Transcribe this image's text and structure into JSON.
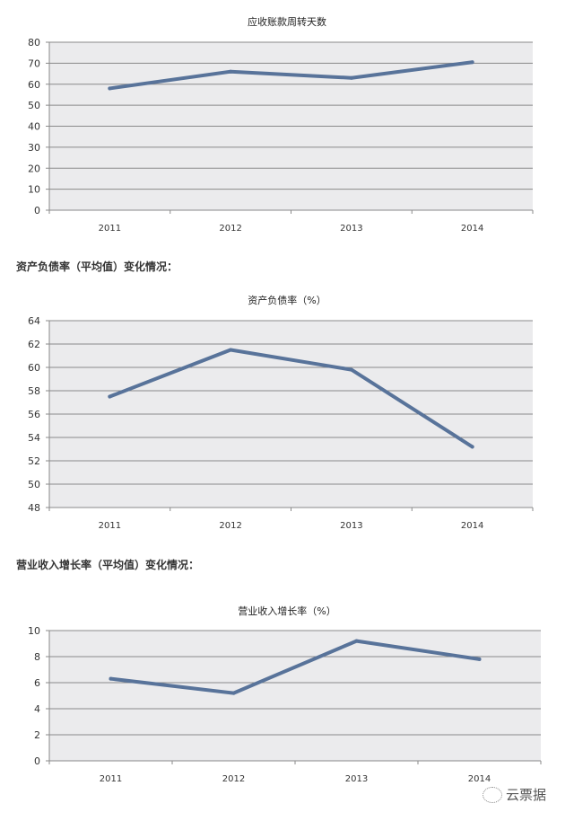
{
  "headings": [
    "资产负债率（平均值）变化情况：",
    "营业收入增长率（平均值）变化情况："
  ],
  "watermark": {
    "text": "云票据",
    "icon": "wechat-icon"
  },
  "chart_data": [
    {
      "type": "line",
      "title": "应收账款周转天数",
      "categories": [
        "2011",
        "2012",
        "2013",
        "2014"
      ],
      "values": [
        58,
        66,
        63,
        70.5
      ],
      "ylim": [
        0,
        80
      ],
      "yticks": [
        0,
        10,
        20,
        30,
        40,
        50,
        60,
        70,
        80
      ],
      "grid": true,
      "line_color": "#58739a",
      "plot_bg": "#ebebed"
    },
    {
      "type": "line",
      "title": "资产负债率（%）",
      "categories": [
        "2011",
        "2012",
        "2013",
        "2014"
      ],
      "values": [
        57.5,
        61.5,
        59.8,
        53.2
      ],
      "ylim": [
        48,
        64
      ],
      "yticks": [
        48,
        50,
        52,
        54,
        56,
        58,
        60,
        62,
        64
      ],
      "grid": true,
      "line_color": "#58739a",
      "plot_bg": "#ebebed"
    },
    {
      "type": "line",
      "title": "营业收入增长率（%）",
      "categories": [
        "2011",
        "2012",
        "2013",
        "2014"
      ],
      "values": [
        6.3,
        5.2,
        9.2,
        7.8
      ],
      "ylim": [
        0,
        10
      ],
      "yticks": [
        0,
        2,
        4,
        6,
        8,
        10
      ],
      "grid": true,
      "line_color": "#58739a",
      "plot_bg": "#ebebed"
    }
  ]
}
